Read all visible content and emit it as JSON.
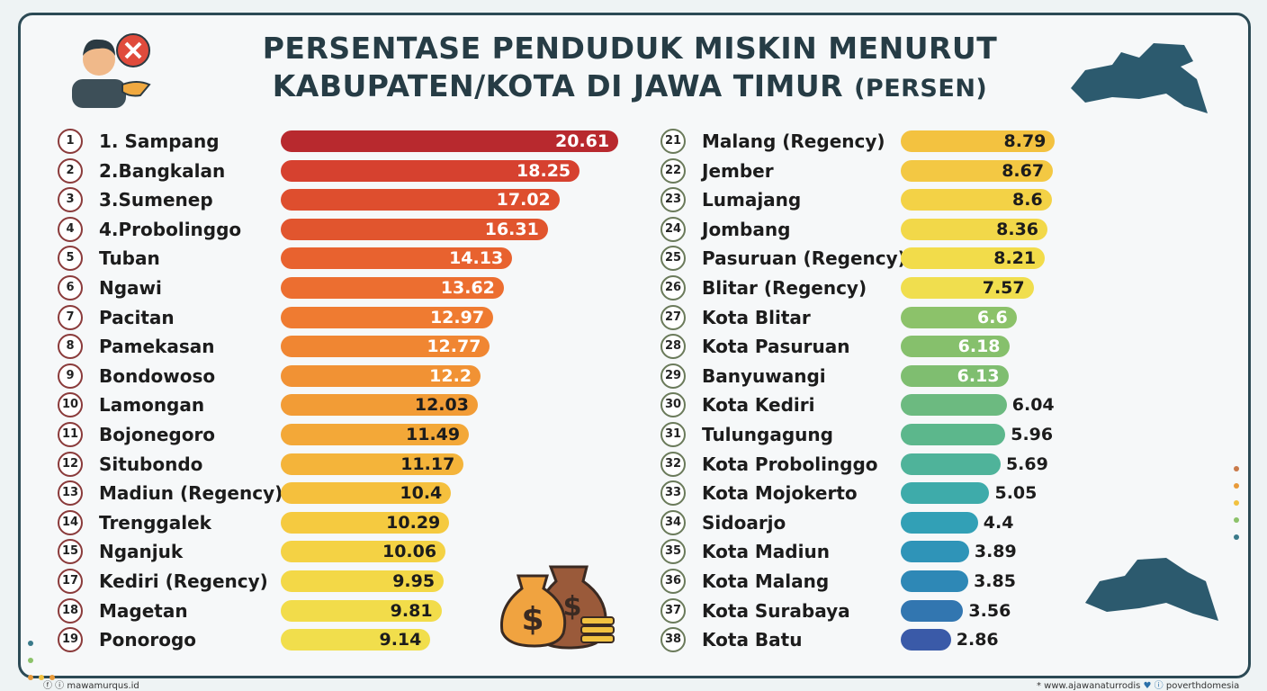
{
  "chart_data": {
    "type": "bar",
    "orientation": "horizontal",
    "title_line1": "PERSENTASE PENDUDUK MISKIN MENURUT",
    "title_line2": "KABUPATEN/KOTA DI JAWA TIMUR",
    "title_unit": "(PERSEN)",
    "xlabel": "",
    "ylabel": "",
    "left": [
      {
        "rank": "1",
        "name": "1. Sampang",
        "value": 20.61,
        "label": "20.61",
        "color": "#b8292e"
      },
      {
        "rank": "2",
        "name": "2.Bangkalan",
        "value": 18.25,
        "label": "18.25",
        "color": "#d6412f"
      },
      {
        "rank": "3",
        "name": "3.Sumenep",
        "value": 17.02,
        "label": "17.02",
        "color": "#de4e2e"
      },
      {
        "rank": "4",
        "name": "4.Probolinggo",
        "value": 16.31,
        "label": "16.31",
        "color": "#e1552e"
      },
      {
        "rank": "5",
        "name": "Tuban",
        "value": 14.13,
        "label": "14.13",
        "color": "#e8622f"
      },
      {
        "rank": "6",
        "name": "Ngawi",
        "value": 13.62,
        "label": "13.62",
        "color": "#ec6e30"
      },
      {
        "rank": "7",
        "name": "Pacitan",
        "value": 12.97,
        "label": "12.97",
        "color": "#ef7b31"
      },
      {
        "rank": "8",
        "name": "Pamekasan",
        "value": 12.77,
        "label": "12.77",
        "color": "#f08632"
      },
      {
        "rank": "9",
        "name": "Bondowoso",
        "value": 12.2,
        "label": "12.2",
        "color": "#f19234"
      },
      {
        "rank": "10",
        "name": "Lamongan",
        "value": 12.03,
        "label": "12.03",
        "color": "#f29c36"
      },
      {
        "rank": "11",
        "name": "Bojonegoro",
        "value": 11.49,
        "label": "11.49",
        "color": "#f3a838"
      },
      {
        "rank": "12",
        "name": "Situbondo",
        "value": 11.17,
        "label": "11.17",
        "color": "#f4b43a"
      },
      {
        "rank": "13",
        "name": "Madiun (Regency)",
        "value": 10.4,
        "label": "10.4",
        "color": "#f5c03d"
      },
      {
        "rank": "14",
        "name": "Trenggalek",
        "value": 10.29,
        "label": "10.29",
        "color": "#f5ca40"
      },
      {
        "rank": "15",
        "name": "Nganjuk",
        "value": 10.06,
        "label": "10.06",
        "color": "#f4d244"
      },
      {
        "rank": "17",
        "name": "Kediri (Regency)",
        "value": 9.95,
        "label": "9.95",
        "color": "#f3d847"
      },
      {
        "rank": "18",
        "name": "Magetan",
        "value": 9.81,
        "label": "9.81",
        "color": "#f2dc4a"
      },
      {
        "rank": "19",
        "name": "Ponorogo",
        "value": 9.14,
        "label": "9.14",
        "color": "#f1de4c"
      }
    ],
    "right": [
      {
        "rank": "21",
        "name": "Malang (Regency)",
        "value": 8.79,
        "label": "8.79",
        "color": "#f3c240"
      },
      {
        "rank": "22",
        "name": "Jember",
        "value": 8.67,
        "label": "8.67",
        "color": "#f3c843"
      },
      {
        "rank": "23",
        "name": "Lumajang",
        "value": 8.6,
        "label": "8.6",
        "color": "#f3d246"
      },
      {
        "rank": "24",
        "name": "Jombang",
        "value": 8.36,
        "label": "8.36",
        "color": "#f2d849"
      },
      {
        "rank": "25",
        "name": "Pasuruan (Regency)",
        "value": 8.21,
        "label": "8.21",
        "color": "#f2dc4a"
      },
      {
        "rank": "26",
        "name": "Blitar (Regency)",
        "value": 7.57,
        "label": "7.57",
        "color": "#f0de4e"
      },
      {
        "rank": "27",
        "name": "Kota Blitar",
        "value": 6.6,
        "label": "6.6",
        "color": "#8cc26a"
      },
      {
        "rank": "28",
        "name": "Kota Pasuruan",
        "value": 6.18,
        "label": "6.18",
        "color": "#86c06c"
      },
      {
        "rank": "29",
        "name": "Banyuwangi",
        "value": 6.13,
        "label": "6.13",
        "color": "#7fbe70"
      },
      {
        "rank": "30",
        "name": "Kota Kediri",
        "value": 6.04,
        "label": "6.04",
        "color": "#6cba80"
      },
      {
        "rank": "31",
        "name": "Tulungagung",
        "value": 5.96,
        "label": "5.96",
        "color": "#5cb78c"
      },
      {
        "rank": "32",
        "name": "Kota Probolinggo",
        "value": 5.69,
        "label": "5.69",
        "color": "#4fb39a"
      },
      {
        "rank": "33",
        "name": "Kota Mojokerto",
        "value": 5.05,
        "label": "5.05",
        "color": "#3eabaa"
      },
      {
        "rank": "34",
        "name": "Sidoarjo",
        "value": 4.4,
        "label": "4.4",
        "color": "#32a0b6"
      },
      {
        "rank": "35",
        "name": "Kota Madiun",
        "value": 3.89,
        "label": "3.89",
        "color": "#2f94b8"
      },
      {
        "rank": "36",
        "name": "Kota Malang",
        "value": 3.85,
        "label": "3.85",
        "color": "#2e88b6"
      },
      {
        "rank": "37",
        "name": "Kota Surabaya",
        "value": 3.56,
        "label": "3.56",
        "color": "#3276b0"
      },
      {
        "rank": "38",
        "name": "Kota Batu",
        "value": 2.86,
        "label": "2.86",
        "color": "#3a5aa8"
      }
    ]
  },
  "footer": {
    "left": "mawamurqus.id",
    "right_web": "* www.ajawanaturrodis",
    "right_social": "poverthdomesia"
  }
}
